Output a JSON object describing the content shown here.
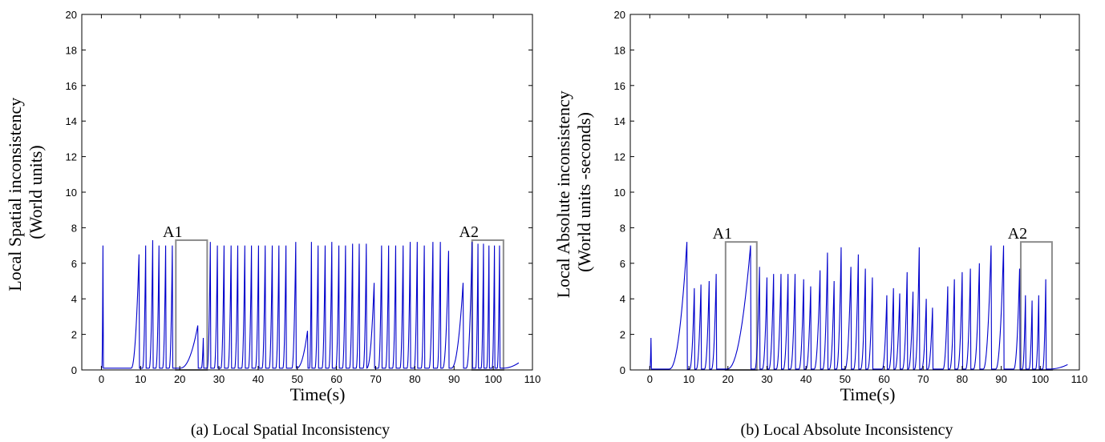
{
  "figure_title": "",
  "chart_data": [
    {
      "type": "line",
      "panel_caption": "(a) Local Spatial Inconsistency",
      "title": "",
      "xlabel": "Time(s)",
      "ylabel_lines": [
        "Local Spatial inconsistency",
        "(World units)"
      ],
      "xlim": [
        -5,
        110
      ],
      "ylim": [
        0,
        20
      ],
      "xticks": [
        0,
        10,
        20,
        30,
        40,
        50,
        60,
        70,
        80,
        90,
        100,
        110
      ],
      "yticks": [
        0,
        2,
        4,
        6,
        8,
        10,
        12,
        14,
        16,
        18,
        20
      ],
      "grid": false,
      "series": [
        {
          "color": "#0000cc",
          "baseline": 0.1,
          "peaks": [
            {
              "x": 0.4,
              "h": 7.0,
              "rise": 0.3
            },
            {
              "x": 9.6,
              "h": 6.5,
              "rise": 2.0
            },
            {
              "x": 11.3,
              "h": 7.0,
              "rise": 0.8
            },
            {
              "x": 13.1,
              "h": 7.3,
              "rise": 0.9
            },
            {
              "x": 14.7,
              "h": 7.0,
              "rise": 0.8
            },
            {
              "x": 16.4,
              "h": 7.0,
              "rise": 0.8
            },
            {
              "x": 18.1,
              "h": 7.0,
              "rise": 0.8
            },
            {
              "x": 24.6,
              "h": 2.5,
              "rise": 4.5
            },
            {
              "x": 26.0,
              "h": 1.8,
              "rise": 0.5
            },
            {
              "x": 27.8,
              "h": 7.2,
              "rise": 0.8
            },
            {
              "x": 29.6,
              "h": 7.0,
              "rise": 0.8
            },
            {
              "x": 31.3,
              "h": 7.0,
              "rise": 0.8
            },
            {
              "x": 33.1,
              "h": 7.0,
              "rise": 0.8
            },
            {
              "x": 34.8,
              "h": 7.0,
              "rise": 0.8
            },
            {
              "x": 36.6,
              "h": 7.0,
              "rise": 0.8
            },
            {
              "x": 38.3,
              "h": 7.0,
              "rise": 0.8
            },
            {
              "x": 40.1,
              "h": 7.0,
              "rise": 0.8
            },
            {
              "x": 41.8,
              "h": 7.0,
              "rise": 0.8
            },
            {
              "x": 43.6,
              "h": 7.0,
              "rise": 0.8
            },
            {
              "x": 45.3,
              "h": 7.0,
              "rise": 0.8
            },
            {
              "x": 47.1,
              "h": 7.0,
              "rise": 0.8
            },
            {
              "x": 49.6,
              "h": 7.2,
              "rise": 1.0
            },
            {
              "x": 52.6,
              "h": 2.2,
              "rise": 2.8
            },
            {
              "x": 53.6,
              "h": 7.2,
              "rise": 0.5
            },
            {
              "x": 55.3,
              "h": 7.0,
              "rise": 0.8
            },
            {
              "x": 57.1,
              "h": 7.0,
              "rise": 0.8
            },
            {
              "x": 58.8,
              "h": 7.2,
              "rise": 0.8
            },
            {
              "x": 60.6,
              "h": 7.0,
              "rise": 0.8
            },
            {
              "x": 62.3,
              "h": 7.0,
              "rise": 0.8
            },
            {
              "x": 64.1,
              "h": 7.1,
              "rise": 0.8
            },
            {
              "x": 65.8,
              "h": 7.1,
              "rise": 0.8
            },
            {
              "x": 67.6,
              "h": 7.1,
              "rise": 0.8
            },
            {
              "x": 69.6,
              "h": 4.9,
              "rise": 2.2
            },
            {
              "x": 71.5,
              "h": 7.0,
              "rise": 0.8
            },
            {
              "x": 73.3,
              "h": 7.0,
              "rise": 0.8
            },
            {
              "x": 75.1,
              "h": 7.0,
              "rise": 0.8
            },
            {
              "x": 77.0,
              "h": 7.0,
              "rise": 0.8
            },
            {
              "x": 78.8,
              "h": 7.2,
              "rise": 0.8
            },
            {
              "x": 80.6,
              "h": 7.2,
              "rise": 0.8
            },
            {
              "x": 82.4,
              "h": 7.0,
              "rise": 0.8
            },
            {
              "x": 84.6,
              "h": 7.2,
              "rise": 1.0
            },
            {
              "x": 86.5,
              "h": 7.2,
              "rise": 0.8
            },
            {
              "x": 88.6,
              "h": 6.7,
              "rise": 1.5
            },
            {
              "x": 92.3,
              "h": 4.9,
              "rise": 3.0
            },
            {
              "x": 94.6,
              "h": 7.2,
              "rise": 1.5
            },
            {
              "x": 96.1,
              "h": 7.1,
              "rise": 0.6
            },
            {
              "x": 97.5,
              "h": 7.1,
              "rise": 0.6
            },
            {
              "x": 98.9,
              "h": 7.0,
              "rise": 0.6
            },
            {
              "x": 100.3,
              "h": 7.0,
              "rise": 0.6
            },
            {
              "x": 101.6,
              "h": 7.0,
              "rise": 0.6
            }
          ],
          "tail": {
            "x_start": 102.5,
            "x_end": 106.5,
            "y_end": 0.4
          }
        }
      ],
      "annotations": [
        {
          "label": "A1",
          "box": {
            "x0": 19.0,
            "x1": 27.0,
            "y0": 0,
            "y1": 7.3
          }
        },
        {
          "label": "A2",
          "box": {
            "x0": 94.6,
            "x1": 102.6,
            "y0": 0,
            "y1": 7.3
          }
        }
      ]
    },
    {
      "type": "line",
      "panel_caption": "(b) Local Absolute Inconsistency",
      "title": "",
      "xlabel": "Time(s)",
      "ylabel_lines": [
        "Local Absolute inconsistency",
        "(World units -seconds)"
      ],
      "xlim": [
        -5,
        110
      ],
      "ylim": [
        0,
        20
      ],
      "xticks": [
        0,
        10,
        20,
        30,
        40,
        50,
        60,
        70,
        80,
        90,
        100,
        110
      ],
      "yticks": [
        0,
        2,
        4,
        6,
        8,
        10,
        12,
        14,
        16,
        18,
        20
      ],
      "grid": false,
      "series": [
        {
          "color": "#0000cc",
          "baseline": 0.05,
          "peaks": [
            {
              "x": 0.3,
              "h": 1.8,
              "rise": 0.3
            },
            {
              "x": 9.5,
              "h": 7.2,
              "rise": 4.5
            },
            {
              "x": 11.4,
              "h": 4.6,
              "rise": 1.2
            },
            {
              "x": 13.1,
              "h": 4.8,
              "rise": 1.2
            },
            {
              "x": 15.2,
              "h": 5.0,
              "rise": 1.2
            },
            {
              "x": 17.0,
              "h": 5.4,
              "rise": 1.2
            },
            {
              "x": 25.8,
              "h": 7.0,
              "rise": 6.0
            },
            {
              "x": 28.1,
              "h": 5.8,
              "rise": 1.2
            },
            {
              "x": 30.0,
              "h": 5.2,
              "rise": 1.2
            },
            {
              "x": 31.7,
              "h": 5.4,
              "rise": 1.2
            },
            {
              "x": 33.6,
              "h": 5.4,
              "rise": 1.2
            },
            {
              "x": 35.4,
              "h": 5.4,
              "rise": 1.2
            },
            {
              "x": 37.2,
              "h": 5.4,
              "rise": 1.2
            },
            {
              "x": 39.4,
              "h": 5.1,
              "rise": 1.2
            },
            {
              "x": 41.2,
              "h": 4.7,
              "rise": 1.2
            },
            {
              "x": 43.6,
              "h": 5.6,
              "rise": 1.5
            },
            {
              "x": 45.5,
              "h": 6.6,
              "rise": 1.2
            },
            {
              "x": 47.2,
              "h": 5.0,
              "rise": 1.2
            },
            {
              "x": 49.0,
              "h": 6.9,
              "rise": 1.2
            },
            {
              "x": 51.5,
              "h": 5.8,
              "rise": 1.5
            },
            {
              "x": 53.4,
              "h": 6.5,
              "rise": 1.2
            },
            {
              "x": 55.2,
              "h": 5.7,
              "rise": 1.2
            },
            {
              "x": 57.0,
              "h": 5.2,
              "rise": 1.2
            },
            {
              "x": 60.7,
              "h": 4.2,
              "rise": 1.2
            },
            {
              "x": 62.4,
              "h": 4.6,
              "rise": 1.2
            },
            {
              "x": 64.0,
              "h": 4.3,
              "rise": 1.2
            },
            {
              "x": 65.9,
              "h": 5.5,
              "rise": 1.2
            },
            {
              "x": 67.4,
              "h": 4.4,
              "rise": 1.2
            },
            {
              "x": 69.0,
              "h": 6.9,
              "rise": 1.2
            },
            {
              "x": 70.8,
              "h": 4.0,
              "rise": 1.2
            },
            {
              "x": 72.4,
              "h": 3.5,
              "rise": 1.2
            },
            {
              "x": 76.3,
              "h": 4.7,
              "rise": 1.2
            },
            {
              "x": 78.0,
              "h": 5.1,
              "rise": 1.2
            },
            {
              "x": 80.0,
              "h": 5.5,
              "rise": 1.2
            },
            {
              "x": 82.1,
              "h": 5.7,
              "rise": 1.2
            },
            {
              "x": 84.4,
              "h": 6.0,
              "rise": 1.5
            },
            {
              "x": 87.4,
              "h": 7.0,
              "rise": 2.0
            },
            {
              "x": 90.6,
              "h": 7.0,
              "rise": 2.0
            },
            {
              "x": 94.7,
              "h": 5.7,
              "rise": 1.5
            },
            {
              "x": 96.2,
              "h": 4.2,
              "rise": 0.8
            },
            {
              "x": 97.9,
              "h": 3.9,
              "rise": 0.8
            },
            {
              "x": 99.6,
              "h": 4.2,
              "rise": 0.8
            },
            {
              "x": 101.4,
              "h": 5.1,
              "rise": 0.8
            }
          ],
          "tail": {
            "x_start": 102.3,
            "x_end": 107,
            "y_end": 0.3
          }
        }
      ],
      "annotations": [
        {
          "label": "A1",
          "box": {
            "x0": 19.4,
            "x1": 27.4,
            "y0": 0,
            "y1": 7.2
          }
        },
        {
          "label": "A2",
          "box": {
            "x0": 95.0,
            "x1": 103.0,
            "y0": 0,
            "y1": 7.2
          }
        }
      ]
    }
  ]
}
